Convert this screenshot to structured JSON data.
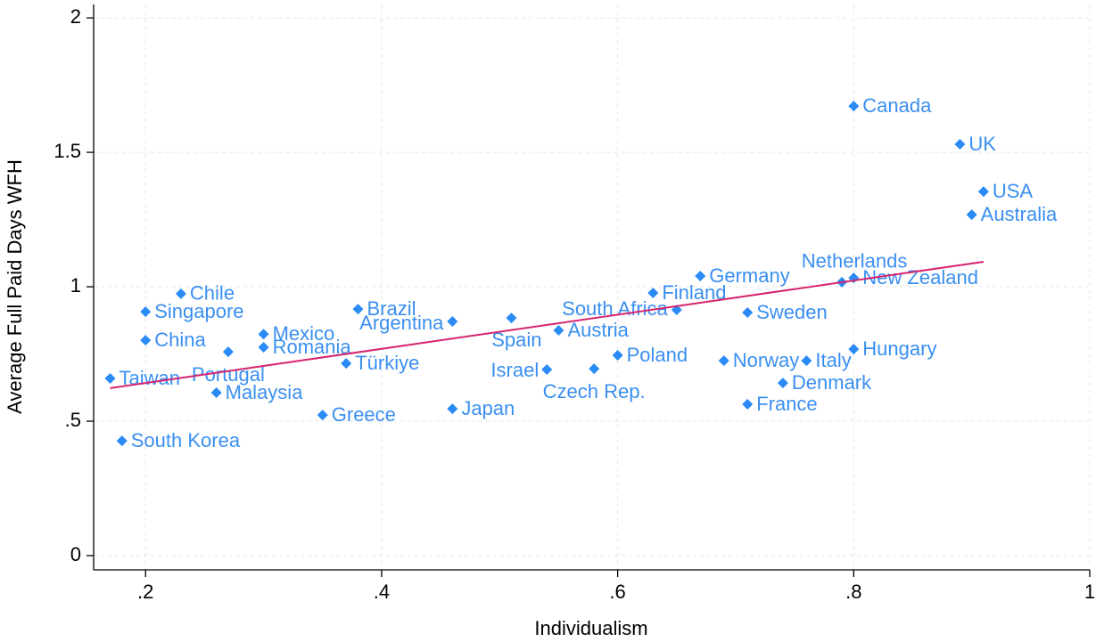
{
  "chart_data": {
    "type": "scatter",
    "x_label": "Individualism",
    "y_label": "Average Full Paid Days WFH",
    "color": "#2a8af6",
    "grid": true,
    "labels": [
      "Taiwan",
      "South Korea",
      "Singapore",
      "China",
      "Chile",
      "Portugal",
      "Malaysia",
      "Mexico",
      "Romania",
      "Greece",
      "Türkiye",
      "Brazil",
      "Argentina",
      "Japan",
      "Spain",
      "Israel",
      "Austria",
      "Czech Rep.",
      "Poland",
      "Finland",
      "South Africa",
      "Germany",
      "Sweden",
      "France",
      "Norway",
      "Italy",
      "Denmark",
      "Netherlands",
      "New Zealand",
      "Hungary",
      "Canada",
      "UK",
      "USA",
      "Australia"
    ],
    "x": [
      0.17,
      0.18,
      0.2,
      0.2,
      0.23,
      0.27,
      0.26,
      0.3,
      0.3,
      0.35,
      0.37,
      0.38,
      0.46,
      0.46,
      0.51,
      0.54,
      0.55,
      0.58,
      0.6,
      0.63,
      0.65,
      0.67,
      0.71,
      0.71,
      0.69,
      0.76,
      0.74,
      0.79,
      0.8,
      0.8,
      0.8,
      0.89,
      0.91,
      0.9
    ],
    "values": [
      0.659,
      0.427,
      0.907,
      0.801,
      0.974,
      0.758,
      0.606,
      0.824,
      0.775,
      0.523,
      0.715,
      0.917,
      0.871,
      0.546,
      0.884,
      0.692,
      0.838,
      0.695,
      0.745,
      0.977,
      0.914,
      1.04,
      0.904,
      0.563,
      0.725,
      0.725,
      0.642,
      1.017,
      1.033,
      0.768,
      1.672,
      1.53,
      1.354,
      1.268
    ],
    "fit_line": {
      "color": "#d6246e",
      "x": [
        0.17,
        0.91
      ],
      "values": [
        0.623,
        1.093
      ]
    },
    "xlim": [
      0.156,
      1
    ],
    "ylim": [
      -0.053,
      2.05
    ],
    "xticks": [
      {
        "value": 0.2,
        "label": ".2"
      },
      {
        "value": 0.4,
        "label": ".4"
      },
      {
        "value": 0.6,
        "label": ".6"
      },
      {
        "value": 0.8,
        "label": ".8"
      },
      1
    ],
    "yticks": [
      0,
      {
        "value": 0.5,
        "label": ".5"
      },
      1,
      1.5,
      2
    ]
  }
}
